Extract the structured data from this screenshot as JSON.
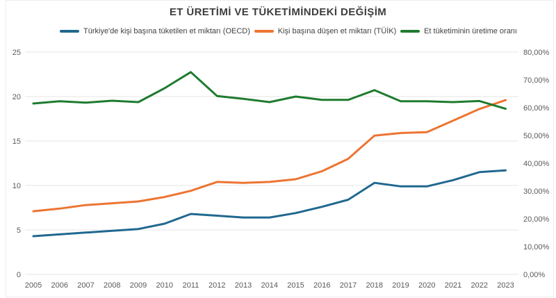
{
  "page": {
    "background": "#ffffff"
  },
  "chart_data": {
    "type": "line",
    "title": "ET ÜRETİMİ VE TÜKETİMİNDEKİ DEĞİŞİM",
    "categories": [
      "2005",
      "2006",
      "2007",
      "2008",
      "2009",
      "2010",
      "2011",
      "2012",
      "2013",
      "2014",
      "2015",
      "2016",
      "2017",
      "2018",
      "2019",
      "2020",
      "2021",
      "2022",
      "2023"
    ],
    "series": [
      {
        "name": "Türkiye'de kişi başına tüketilen et miktarı (OECD)",
        "axis": "left",
        "color": "#20688f",
        "values": [
          4.3,
          4.5,
          4.7,
          4.9,
          5.1,
          5.7,
          6.8,
          6.6,
          6.4,
          6.4,
          6.9,
          7.6,
          8.4,
          10.3,
          9.9,
          9.9,
          10.6,
          11.5,
          11.7
        ]
      },
      {
        "name": "Kişi başına düşen et miktarı (TÜİK)",
        "axis": "left",
        "color": "#ed7431",
        "values": [
          7.1,
          7.4,
          7.8,
          8.0,
          8.2,
          8.7,
          9.4,
          10.4,
          10.3,
          10.4,
          10.7,
          11.6,
          13.0,
          15.6,
          15.9,
          16.0,
          17.3,
          18.6,
          19.6
        ]
      },
      {
        "name": "Et tüketiminin üretime oranı",
        "axis": "right",
        "unit": "%",
        "color": "#1e7b2f",
        "values": [
          61.5,
          62.3,
          61.8,
          62.5,
          62.0,
          67.0,
          72.8,
          64.2,
          63.2,
          62.0,
          64.0,
          62.8,
          62.8,
          66.3,
          62.3,
          62.3,
          62.0,
          62.4,
          59.6
        ]
      }
    ],
    "left_axis": {
      "ticks": [
        0,
        5,
        10,
        15,
        20,
        25
      ],
      "range": [
        0,
        25
      ]
    },
    "right_axis": {
      "tick_labels": [
        "0,00%",
        "10,00%",
        "20,00%",
        "30,00%",
        "40,00%",
        "50,00%",
        "60,00%",
        "70,00%",
        "80,00%"
      ],
      "range": [
        0,
        80
      ]
    },
    "grid": "horizontal",
    "legend_position": "top",
    "grid_color": "#e6e6e6",
    "axis_text_color": "#595959"
  }
}
